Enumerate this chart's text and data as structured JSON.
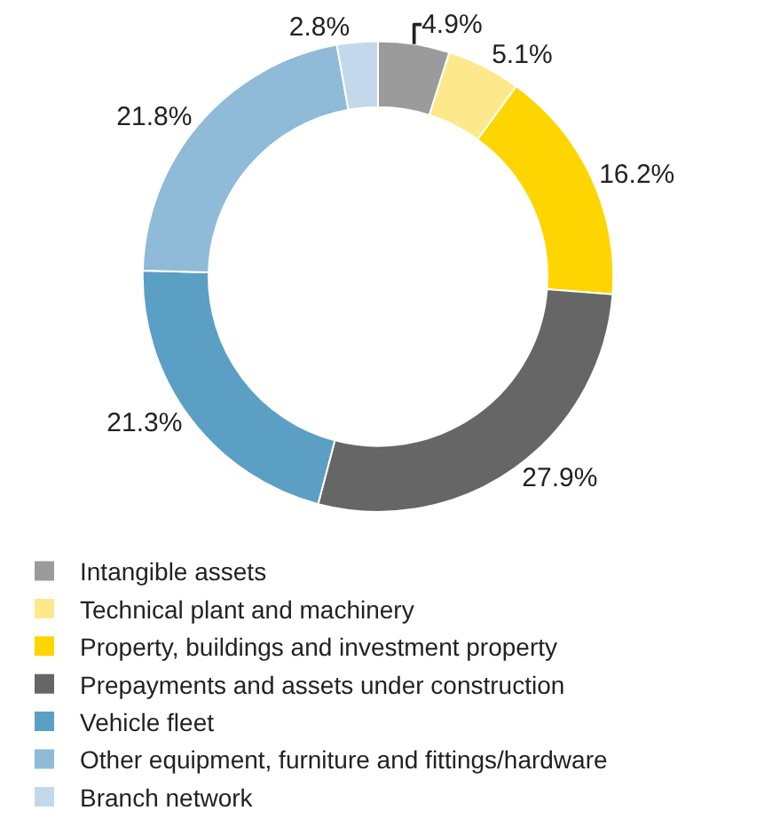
{
  "chart_data": {
    "type": "donut",
    "categories": [
      "Intangible assets",
      "Technical plant and machinery",
      "Property, buildings and investment property",
      "Prepayments and assets under construction",
      "Vehicle fleet",
      "Other equipment, furniture and fittings/hardware",
      "Branch network"
    ],
    "values": [
      4.9,
      5.1,
      16.2,
      27.9,
      21.3,
      21.8,
      2.8
    ],
    "colors": [
      "#9b9b9b",
      "#fde98c",
      "#ffd500",
      "#666666",
      "#5b9fc4",
      "#8fbad8",
      "#c3d8eb"
    ],
    "value_labels": [
      "4.9%",
      "5.1%",
      "16.2%",
      "27.9%",
      "21.3%",
      "21.8%",
      "2.8%"
    ],
    "legend": "bottom"
  }
}
